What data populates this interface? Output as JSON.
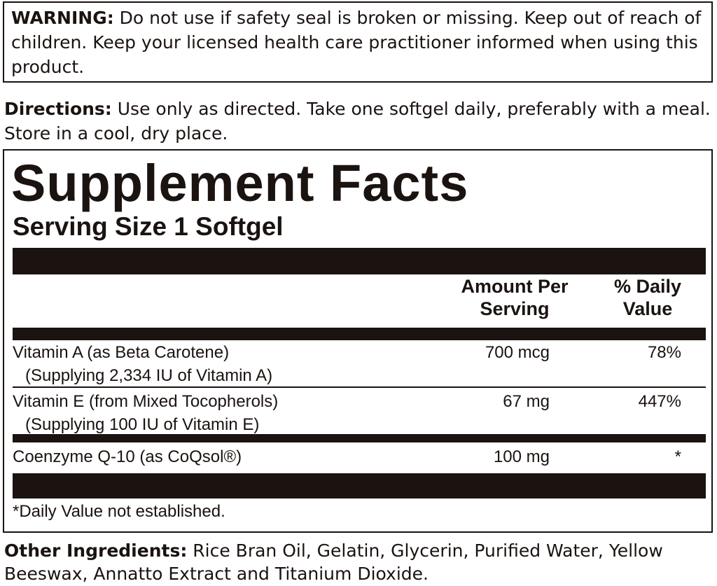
{
  "warning": {
    "label": "WARNING:",
    "text": "Do not use if safety seal is broken or missing. Keep out of reach of children. Keep your licensed health care practitioner informed when using this product."
  },
  "directions": {
    "label": "Directions:",
    "text": "Use only as directed. Take one softgel daily, preferably with a meal. Store in a cool, dry place."
  },
  "supplement_facts": {
    "title": "Supplement Facts",
    "serving_size": "Serving Size 1 Softgel",
    "headers": [
      "Amount Per Serving",
      "% Daily Value"
    ],
    "rows": [
      {
        "name": "Vitamin A (as Beta Carotene)",
        "note": "(Supplying 2,334 IU of Vitamin A)",
        "amount": "700 mcg",
        "daily_value": "78%"
      },
      {
        "name": "Vitamin E (from Mixed Tocopherols)",
        "note": "(Supplying 100 IU of Vitamin E)",
        "amount": "67 mg",
        "daily_value": "447%"
      },
      {
        "name": "Coenzyme Q-10 (as CoQsol®)",
        "amount": "100 mg",
        "daily_value": "*"
      }
    ],
    "footnote": "*Daily Value not established."
  },
  "other_ingredients": {
    "label": "Other Ingredients:",
    "text": "Rice Bran Oil, Gelatin, Glycerin, Purified Water, Yellow Beeswax, Annatto Extract and Titanium Dioxide."
  }
}
